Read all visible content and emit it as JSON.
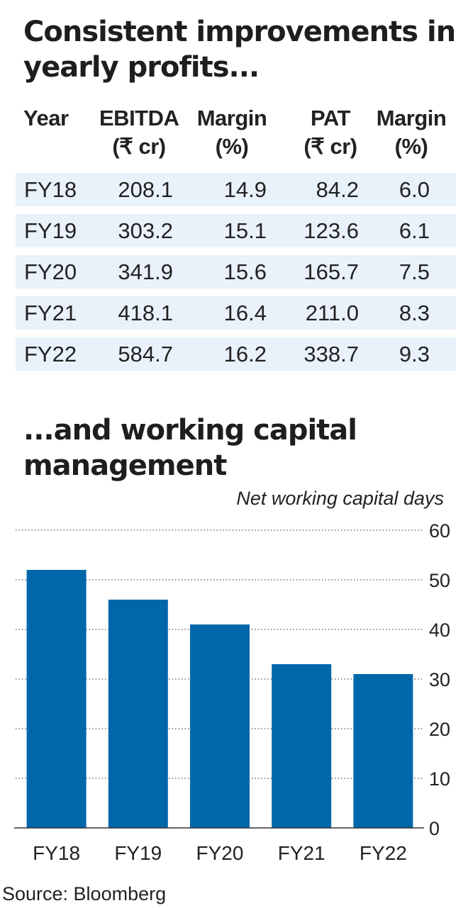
{
  "title": "Consistent improvements in yearly profits...",
  "table": {
    "headers": [
      [
        "Year"
      ],
      [
        "EBITDA",
        "(₹ cr)"
      ],
      [
        "Margin",
        "(%)"
      ],
      [
        "PAT",
        "(₹ cr)"
      ],
      [
        "Margin",
        "(%)"
      ]
    ],
    "rows": [
      [
        "FY18",
        "208.1",
        "14.9",
        "84.2",
        "6.0"
      ],
      [
        "FY19",
        "303.2",
        "15.1",
        "123.6",
        "6.1"
      ],
      [
        "FY20",
        "341.9",
        "15.6",
        "165.7",
        "7.5"
      ],
      [
        "FY21",
        "418.1",
        "16.4",
        "211.0",
        "8.3"
      ],
      [
        "FY22",
        "584.7",
        "16.2",
        "338.7",
        "9.3"
      ]
    ],
    "stripe_color": "#e9f1fa"
  },
  "chart_title": "...and working capital management",
  "chart_data": {
    "type": "bar",
    "categories": [
      "FY18",
      "FY19",
      "FY20",
      "FY21",
      "FY22"
    ],
    "values": [
      52,
      46,
      41,
      33,
      31
    ],
    "ylabel": "Net working capital days",
    "ylim": [
      0,
      60
    ],
    "yticks": [
      0,
      10,
      20,
      30,
      40,
      50,
      60
    ],
    "grid": true,
    "y_axis_side": "right",
    "bar_color": "#0067ab"
  },
  "source": "Source: Bloomberg"
}
